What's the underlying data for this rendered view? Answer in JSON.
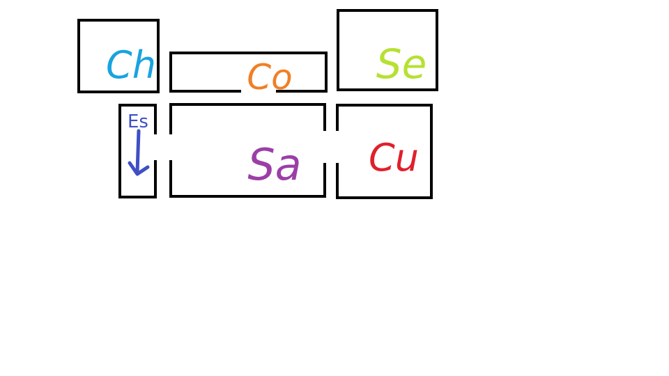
{
  "rooms": [
    {
      "id": "ch",
      "label": "Ch",
      "color": "#19a3e0"
    },
    {
      "id": "co",
      "label": "Co",
      "color": "#f07f25"
    },
    {
      "id": "se",
      "label": "Se",
      "color": "#b6e132"
    },
    {
      "id": "es",
      "label": "Es",
      "color": "#3f4fc6"
    },
    {
      "id": "sa",
      "label": "Sa",
      "color": "#9b3fa6"
    },
    {
      "id": "cu",
      "label": "Cu",
      "color": "#e01f2c"
    }
  ],
  "outline_color": "#000000",
  "background": "#ffffff"
}
